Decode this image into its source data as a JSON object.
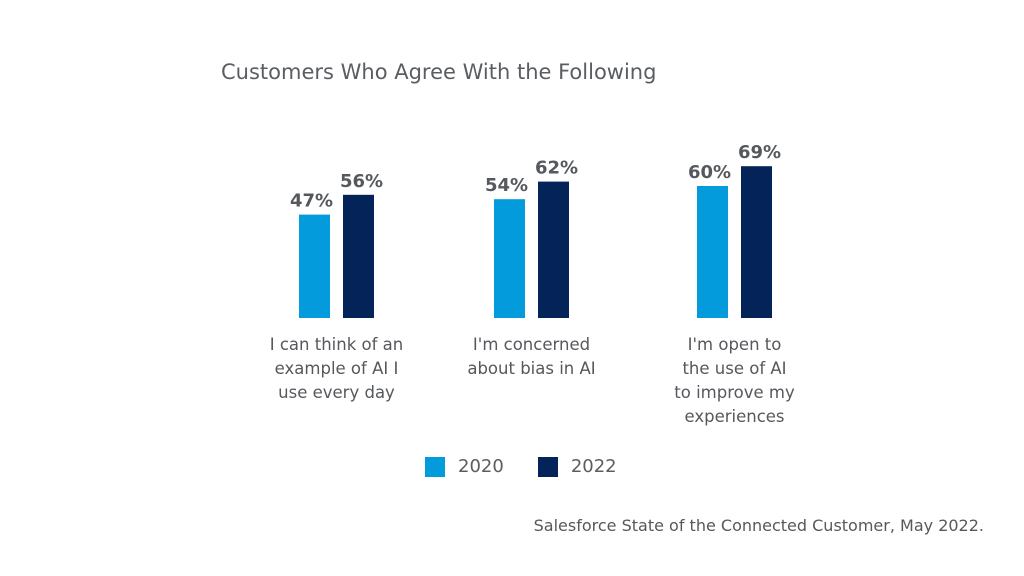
{
  "chart_data": {
    "type": "bar",
    "title": "Customers Who Agree With the Following",
    "categories": [
      "I can think of an example of AI I use every day",
      "I'm concerned about bias in AI",
      "I'm open to the use of AI to improve my experiences"
    ],
    "category_lines": [
      [
        "I can think of an",
        "example of AI I",
        "use every day"
      ],
      [
        "I'm concerned",
        "about bias in AI"
      ],
      [
        "I'm open to",
        "the use of AI",
        "to improve my",
        "experiences"
      ]
    ],
    "series": [
      {
        "name": "2020",
        "color": "#049bdc",
        "values": [
          47,
          54,
          60
        ],
        "labels": [
          "47%",
          "54%",
          "60%"
        ]
      },
      {
        "name": "2022",
        "color": "#032359",
        "values": [
          56,
          62,
          69
        ],
        "labels": [
          "56%",
          "62%",
          "69%"
        ]
      }
    ],
    "xlabel": "",
    "ylabel": "",
    "ylim": [
      0,
      100
    ],
    "grid": false,
    "legend": "bottom-center",
    "source": "Salesforce State of the Connected Customer, May 2022."
  }
}
